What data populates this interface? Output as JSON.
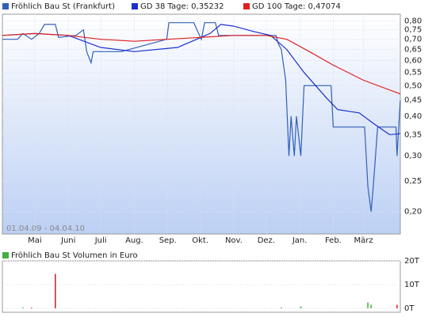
{
  "chart_data": [
    {
      "type": "line",
      "ylog": true,
      "grid": true,
      "range_label": "01.04.09 - 04.04.10",
      "xlim": [
        "2009-04-01",
        "2010-04-04"
      ],
      "xticks": [
        {
          "value": "2009-05-01",
          "label": "Mai"
        },
        {
          "value": "2009-06-01",
          "label": "Juni"
        },
        {
          "value": "2009-07-01",
          "label": "Juli"
        },
        {
          "value": "2009-08-01",
          "label": "Aug."
        },
        {
          "value": "2009-09-01",
          "label": "Sep."
        },
        {
          "value": "2009-10-01",
          "label": "Okt."
        },
        {
          "value": "2009-11-01",
          "label": "Nov."
        },
        {
          "value": "2009-12-01",
          "label": "Dez."
        },
        {
          "value": "2010-01-01",
          "label": "Jan."
        },
        {
          "value": "2010-02-01",
          "label": "Feb."
        },
        {
          "value": "2010-03-01",
          "label": "März"
        }
      ],
      "ylim": [
        0.17,
        0.84
      ],
      "yticks": [
        {
          "value": 0.8,
          "label": "0,80"
        },
        {
          "value": 0.75,
          "label": "0,75"
        },
        {
          "value": 0.7,
          "label": "0,70"
        },
        {
          "value": 0.65,
          "label": "0,65"
        },
        {
          "value": 0.6,
          "label": "0,60"
        },
        {
          "value": 0.55,
          "label": "0,55"
        },
        {
          "value": 0.5,
          "label": "0,50"
        },
        {
          "value": 0.45,
          "label": "0,45"
        },
        {
          "value": 0.4,
          "label": "0,40"
        },
        {
          "value": 0.35,
          "label": "0,35"
        },
        {
          "value": 0.3,
          "label": "0,30"
        },
        {
          "value": 0.25,
          "label": "0,25"
        },
        {
          "value": 0.2,
          "label": "0,20"
        }
      ],
      "series": [
        {
          "name": "Fröhlich Bau St (Frankfurt)",
          "color": "#3060b8",
          "x": [
            "2009-04-01",
            "2009-04-15",
            "2009-04-20",
            "2009-04-28",
            "2009-05-05",
            "2009-05-10",
            "2009-05-20",
            "2009-05-23",
            "2009-06-08",
            "2009-06-15",
            "2009-06-18",
            "2009-06-22",
            "2009-06-24",
            "2009-07-20",
            "2009-08-31",
            "2009-09-02",
            "2009-09-25",
            "2009-09-28",
            "2009-10-02",
            "2009-10-05",
            "2009-10-15",
            "2009-10-18",
            "2009-12-10",
            "2009-12-12",
            "2009-12-15",
            "2009-12-19",
            "2009-12-22",
            "2009-12-24",
            "2009-12-27",
            "2009-12-29",
            "2010-01-02",
            "2010-01-05",
            "2010-01-30",
            "2010-02-01",
            "2010-03-02",
            "2010-03-05",
            "2010-03-08",
            "2010-03-10",
            "2010-03-14",
            "2010-03-31",
            "2010-04-01",
            "2010-04-04"
          ],
          "values": [
            0.7,
            0.7,
            0.73,
            0.7,
            0.73,
            0.78,
            0.78,
            0.71,
            0.72,
            0.75,
            0.64,
            0.59,
            0.64,
            0.64,
            0.7,
            0.79,
            0.79,
            0.75,
            0.7,
            0.79,
            0.79,
            0.72,
            0.72,
            0.68,
            0.65,
            0.52,
            0.3,
            0.4,
            0.3,
            0.4,
            0.3,
            0.5,
            0.5,
            0.37,
            0.37,
            0.24,
            0.2,
            0.24,
            0.37,
            0.37,
            0.3,
            0.45
          ]
        },
        {
          "name": "GD 38 Tage: 0,35232",
          "color": "#1a2fd0",
          "x": [
            "2009-04-01",
            "2009-05-01",
            "2009-06-01",
            "2009-07-01",
            "2009-08-01",
            "2009-09-10",
            "2009-10-10",
            "2009-10-20",
            "2009-11-01",
            "2009-11-20",
            "2009-12-05",
            "2009-12-20",
            "2010-01-05",
            "2010-01-25",
            "2010-02-05",
            "2010-02-25",
            "2010-03-10",
            "2010-03-25",
            "2010-04-04"
          ],
          "values": [
            0.72,
            0.73,
            0.72,
            0.66,
            0.64,
            0.66,
            0.73,
            0.78,
            0.77,
            0.74,
            0.72,
            0.65,
            0.55,
            0.46,
            0.42,
            0.41,
            0.38,
            0.35,
            0.35232
          ]
        },
        {
          "name": "GD 100 Tage: 0,47074",
          "color": "#e02020",
          "x": [
            "2009-04-01",
            "2009-05-01",
            "2009-06-01",
            "2009-07-01",
            "2009-08-01",
            "2009-09-01",
            "2009-10-01",
            "2009-11-01",
            "2009-12-01",
            "2009-12-20",
            "2010-01-10",
            "2010-02-01",
            "2010-03-01",
            "2010-04-04"
          ],
          "values": [
            0.72,
            0.73,
            0.72,
            0.7,
            0.69,
            0.7,
            0.71,
            0.72,
            0.72,
            0.7,
            0.64,
            0.58,
            0.52,
            0.47074
          ]
        }
      ]
    },
    {
      "type": "bar",
      "title": "Fröhlich Bau St Volumen in Euro",
      "title_color": "#40b040",
      "xlim": [
        "2009-04-01",
        "2010-04-04"
      ],
      "ylim": [
        0,
        22000
      ],
      "yticks": [
        {
          "value": 0,
          "label": "0T"
        },
        {
          "value": 10000,
          "label": "10T"
        },
        {
          "value": 20000,
          "label": "20T"
        }
      ],
      "x": [
        "2009-04-20",
        "2009-04-28",
        "2009-05-20",
        "2009-12-15",
        "2010-01-02",
        "2010-03-05",
        "2010-03-08",
        "2010-04-01"
      ],
      "values": [
        400,
        300,
        14500,
        400,
        800,
        2500,
        1500,
        1500
      ],
      "colors": [
        "#40b040",
        "#e02020",
        "#c02020",
        "#40b040",
        "#40b040",
        "#40b040",
        "#40b040",
        "#e02020"
      ]
    }
  ]
}
